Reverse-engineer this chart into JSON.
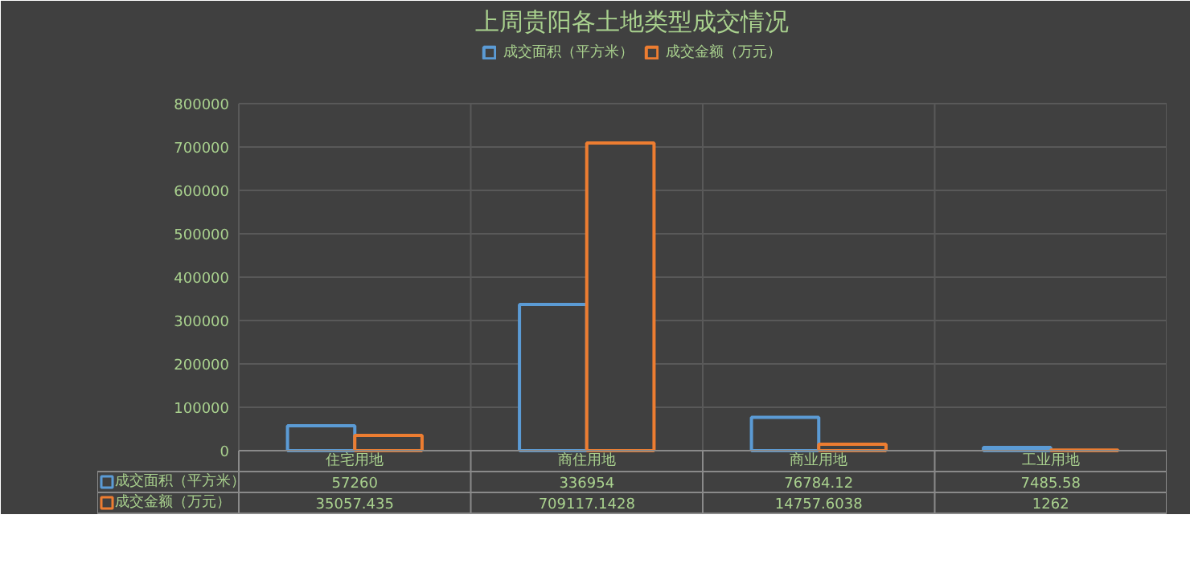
{
  "chart_data": {
    "type": "bar",
    "title": "上周贵阳各土地类型成交情况",
    "categories": [
      "住宅用地",
      "商住用地",
      "商业用地",
      "工业用地"
    ],
    "series": [
      {
        "name": "成交面积（平方米）",
        "color": "#5b9bd5",
        "values": [
          57260,
          336954,
          76784.12,
          7485.58
        ]
      },
      {
        "name": "成交金额（万元）",
        "color": "#ed7d31",
        "values": [
          35057.435,
          709117.1428,
          14757.6038,
          1262
        ]
      }
    ],
    "ylim": [
      0,
      800000
    ],
    "yticks": [
      0,
      100000,
      200000,
      300000,
      400000,
      500000,
      600000,
      700000,
      800000
    ],
    "grid": true,
    "legend": "top",
    "data_labels": true
  }
}
